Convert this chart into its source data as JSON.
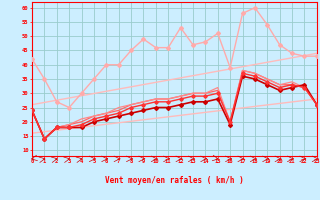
{
  "title": "",
  "xlabel": "Vent moyen/en rafales ( km/h )",
  "xlim": [
    0,
    23
  ],
  "ylim": [
    8,
    62
  ],
  "yticks": [
    10,
    15,
    20,
    25,
    30,
    35,
    40,
    45,
    50,
    55,
    60
  ],
  "xticks": [
    0,
    1,
    2,
    3,
    4,
    5,
    6,
    7,
    8,
    9,
    10,
    11,
    12,
    13,
    14,
    15,
    16,
    17,
    18,
    19,
    20,
    21,
    22,
    23
  ],
  "bg_color": "#cceeff",
  "grid_color": "#99cccc",
  "series": [
    {
      "x": [
        0,
        1,
        2,
        3,
        4,
        5,
        6,
        7,
        8,
        9,
        10,
        11,
        12,
        13,
        14,
        15,
        16,
        17,
        18,
        19,
        20,
        21,
        22,
        23
      ],
      "y": [
        42,
        35,
        27,
        25,
        30,
        35,
        40,
        40,
        45,
        49,
        46,
        46,
        53,
        47,
        48,
        51,
        39,
        58,
        60,
        54,
        47,
        44,
        43,
        43
      ],
      "color": "#ffaaaa",
      "lw": 1.0,
      "marker": "D",
      "ms": 2.0
    },
    {
      "x": [
        0,
        23
      ],
      "y": [
        16,
        28
      ],
      "color": "#ffbbbb",
      "lw": 1.0,
      "marker": null,
      "ms": 0
    },
    {
      "x": [
        0,
        23
      ],
      "y": [
        26,
        44
      ],
      "color": "#ffbbbb",
      "lw": 1.0,
      "marker": null,
      "ms": 0
    },
    {
      "x": [
        0,
        1,
        2,
        3,
        4,
        5,
        6,
        7,
        8,
        9,
        10,
        11,
        12,
        13,
        14,
        15,
        16,
        17,
        18,
        19,
        20,
        21,
        22,
        23
      ],
      "y": [
        24,
        14,
        18,
        18,
        18,
        20,
        21,
        22,
        23,
        24,
        25,
        25,
        26,
        27,
        27,
        28,
        19,
        36,
        35,
        33,
        31,
        32,
        33,
        26
      ],
      "color": "#cc0000",
      "lw": 1.2,
      "marker": "D",
      "ms": 2.0
    },
    {
      "x": [
        0,
        1,
        2,
        3,
        4,
        5,
        6,
        7,
        8,
        9,
        10,
        11,
        12,
        13,
        14,
        15,
        16,
        17,
        18,
        19,
        20,
        21,
        22,
        23
      ],
      "y": [
        24,
        14,
        18,
        18,
        19,
        21,
        22,
        23,
        25,
        26,
        27,
        27,
        28,
        29,
        29,
        30,
        20,
        37,
        36,
        34,
        32,
        33,
        32,
        26
      ],
      "color": "#ff3333",
      "lw": 1.0,
      "marker": "D",
      "ms": 1.8
    },
    {
      "x": [
        0,
        1,
        2,
        3,
        4,
        5,
        6,
        7,
        8,
        9,
        10,
        11,
        12,
        13,
        14,
        15,
        16,
        17,
        18,
        19,
        20,
        21,
        22,
        23
      ],
      "y": [
        24,
        14,
        18,
        19,
        20,
        22,
        23,
        24,
        26,
        27,
        28,
        28,
        29,
        30,
        30,
        31,
        20,
        38,
        37,
        35,
        33,
        33,
        32,
        26
      ],
      "color": "#ff6666",
      "lw": 0.9,
      "marker": null,
      "ms": 0
    },
    {
      "x": [
        0,
        1,
        2,
        3,
        4,
        5,
        6,
        7,
        8,
        9,
        10,
        11,
        12,
        13,
        14,
        15,
        16,
        17,
        18,
        19,
        20,
        21,
        22,
        23
      ],
      "y": [
        24,
        14,
        18,
        19,
        21,
        22,
        23,
        25,
        26,
        27,
        28,
        28,
        29,
        30,
        30,
        32,
        20,
        38,
        37,
        35,
        33,
        34,
        32,
        26
      ],
      "color": "#ff8888",
      "lw": 0.9,
      "marker": null,
      "ms": 0
    }
  ],
  "arrow_color": "#cc0000",
  "arrow_angles": [
    225,
    45,
    45,
    45,
    45,
    0,
    0,
    0,
    0,
    0,
    0,
    0,
    0,
    0,
    0,
    315,
    0,
    0,
    0,
    0,
    0,
    0,
    0,
    0
  ]
}
